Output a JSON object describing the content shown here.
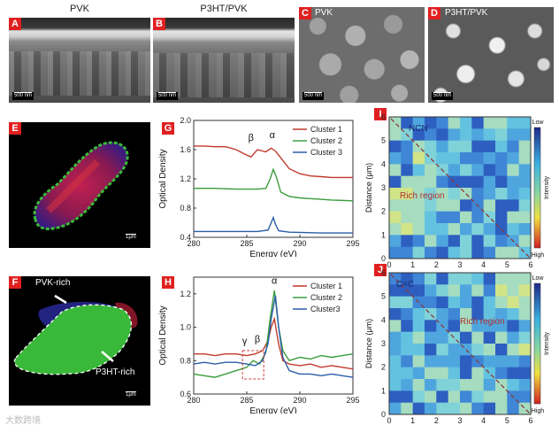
{
  "top": {
    "panels": [
      {
        "letter": "A",
        "title": "PVK",
        "scale": "500 nm"
      },
      {
        "letter": "B",
        "title": "P3HT/PVK",
        "scale": "500 nm"
      },
      {
        "letter": "C",
        "title": "PVK",
        "scale": "500 nm"
      },
      {
        "letter": "D",
        "title": "P3HT/PVK",
        "scale": "500 nm"
      }
    ]
  },
  "E": {
    "letter": "E",
    "scale": "1μm"
  },
  "F": {
    "letter": "F",
    "scale": "1μm",
    "label_pvk": "PVK-rich",
    "label_p3ht": "P3HT-rich"
  },
  "G": {
    "letter": "G",
    "chart_data": {
      "type": "line",
      "xlabel": "Energy (eV)",
      "ylabel": "Optical Density",
      "xlim": [
        280,
        295
      ],
      "ylim": [
        0.4,
        2.0
      ],
      "xticks": [
        280,
        285,
        290,
        295
      ],
      "yticks": [
        "0.4",
        "0.8",
        "1.2",
        "1.6",
        "2.0"
      ],
      "legend_position": "top-right",
      "annotations": [
        "β",
        "α"
      ],
      "series": [
        {
          "name": "Cluster 1",
          "color": "#c0392b",
          "x": [
            280,
            281,
            282,
            283,
            284,
            284.8,
            285.4,
            286,
            286.8,
            287.3,
            287.7,
            288.3,
            289,
            290,
            291,
            292,
            293,
            294,
            295
          ],
          "y": [
            1.65,
            1.65,
            1.64,
            1.64,
            1.6,
            1.54,
            1.5,
            1.6,
            1.57,
            1.62,
            1.58,
            1.47,
            1.34,
            1.27,
            1.24,
            1.23,
            1.22,
            1.22,
            1.22
          ]
        },
        {
          "name": "Cluster 2",
          "color": "#3a9d3a",
          "x": [
            280,
            282,
            284,
            285,
            286,
            286.8,
            287.2,
            287.5,
            287.8,
            288.2,
            289,
            290,
            291,
            292,
            293,
            295
          ],
          "y": [
            1.07,
            1.07,
            1.06,
            1.06,
            1.06,
            1.07,
            1.2,
            1.33,
            1.22,
            1.02,
            0.96,
            0.94,
            0.93,
            0.92,
            0.91,
            0.9
          ]
        },
        {
          "name": "Cluster 3",
          "color": "#2a5da8",
          "x": [
            280,
            283,
            286,
            287,
            287.3,
            287.5,
            287.7,
            288,
            289,
            292,
            295
          ],
          "y": [
            0.48,
            0.48,
            0.48,
            0.5,
            0.6,
            0.67,
            0.58,
            0.49,
            0.47,
            0.46,
            0.46
          ]
        }
      ]
    }
  },
  "H": {
    "letter": "H",
    "chart_data": {
      "type": "line",
      "xlabel": "Energy (eV)",
      "ylabel": "Optical Density",
      "xlim": [
        280,
        295
      ],
      "ylim": [
        0.6,
        1.3
      ],
      "xticks": [
        280,
        285,
        290,
        295
      ],
      "yticks": [
        "0.6",
        "0.8",
        "1.0",
        "1.2"
      ],
      "legend_position": "top-right",
      "annotations": [
        "γ",
        "β",
        "α"
      ],
      "series": [
        {
          "name": "Cluster 1",
          "color": "#c0392b",
          "x": [
            280,
            281,
            282,
            283,
            284,
            285,
            285.8,
            286.5,
            287,
            287.3,
            287.6,
            288,
            288.4,
            289,
            290,
            291,
            292,
            293,
            294,
            295
          ],
          "y": [
            0.84,
            0.84,
            0.83,
            0.84,
            0.84,
            0.83,
            0.84,
            0.86,
            0.92,
            1.0,
            1.05,
            0.9,
            0.8,
            0.78,
            0.77,
            0.78,
            0.76,
            0.77,
            0.76,
            0.75
          ]
        },
        {
          "name": "Cluster 2",
          "color": "#3a9d3a",
          "x": [
            280,
            281,
            282,
            283,
            284,
            285,
            285.6,
            286.2,
            286.8,
            287.2,
            287.6,
            288,
            288.4,
            289,
            290,
            291,
            292,
            293,
            294,
            295
          ],
          "y": [
            0.72,
            0.71,
            0.7,
            0.72,
            0.74,
            0.76,
            0.8,
            0.78,
            0.85,
            1.05,
            1.22,
            1.0,
            0.86,
            0.8,
            0.82,
            0.81,
            0.83,
            0.82,
            0.83,
            0.84
          ]
        },
        {
          "name": "Cluster3",
          "color": "#2a5da8",
          "x": [
            280,
            281,
            282,
            283,
            284,
            285,
            285.8,
            286.5,
            287,
            287.3,
            287.7,
            288,
            288.4,
            289,
            290,
            291,
            292,
            293,
            294,
            295
          ],
          "y": [
            0.78,
            0.79,
            0.78,
            0.79,
            0.79,
            0.78,
            0.77,
            0.8,
            0.9,
            1.05,
            1.19,
            1.0,
            0.82,
            0.74,
            0.72,
            0.72,
            0.71,
            0.72,
            0.71,
            0.7
          ]
        }
      ]
    }
  },
  "I": {
    "letter": "I",
    "label": "NCN",
    "region": "Rich region",
    "xlabel": "Distance (μm)",
    "ylabel": "Distance (μm)",
    "ticks": [
      "0",
      "1",
      "2",
      "3",
      "4",
      "5",
      "6"
    ],
    "cbar_low": "Low",
    "cbar_high": "High",
    "cbar_title": "Intensity"
  },
  "J": {
    "letter": "J",
    "label": "C=C",
    "region": "Rich region",
    "xlabel": "Distance (μm)",
    "ylabel": "Distance (μm)",
    "ticks": [
      "0",
      "1",
      "2",
      "3",
      "4",
      "5",
      "6"
    ],
    "cbar_low": "Low",
    "cbar_high": "High",
    "cbar_title": "Intensity"
  },
  "watermark": "大数跨境"
}
